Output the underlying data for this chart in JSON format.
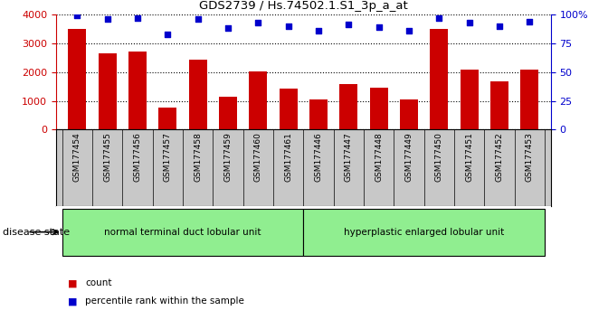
{
  "title": "GDS2739 / Hs.74502.1.S1_3p_a_at",
  "categories": [
    "GSM177454",
    "GSM177455",
    "GSM177456",
    "GSM177457",
    "GSM177458",
    "GSM177459",
    "GSM177460",
    "GSM177461",
    "GSM177446",
    "GSM177447",
    "GSM177448",
    "GSM177449",
    "GSM177450",
    "GSM177451",
    "GSM177452",
    "GSM177453"
  ],
  "counts": [
    3490,
    2650,
    2710,
    760,
    2430,
    1130,
    2010,
    1420,
    1050,
    1580,
    1450,
    1050,
    3490,
    2090,
    1670,
    2090
  ],
  "percentiles": [
    99,
    96,
    97,
    83,
    96,
    88,
    93,
    90,
    86,
    91,
    89,
    86,
    97,
    93,
    90,
    94
  ],
  "group1_label": "normal terminal duct lobular unit",
  "group2_label": "hyperplastic enlarged lobular unit",
  "bar_color": "#cc0000",
  "dot_color": "#0000cc",
  "group_color": "#90ee90",
  "disease_state_label": "disease state",
  "legend_count": "count",
  "legend_percentile": "percentile rank within the sample",
  "ylim_left": [
    0,
    4000
  ],
  "ylim_right": [
    0,
    100
  ],
  "yticks_left": [
    0,
    1000,
    2000,
    3000,
    4000
  ],
  "yticks_right": [
    0,
    25,
    50,
    75,
    100
  ],
  "tick_area_color": "#c8c8c8",
  "background_color": "#ffffff"
}
